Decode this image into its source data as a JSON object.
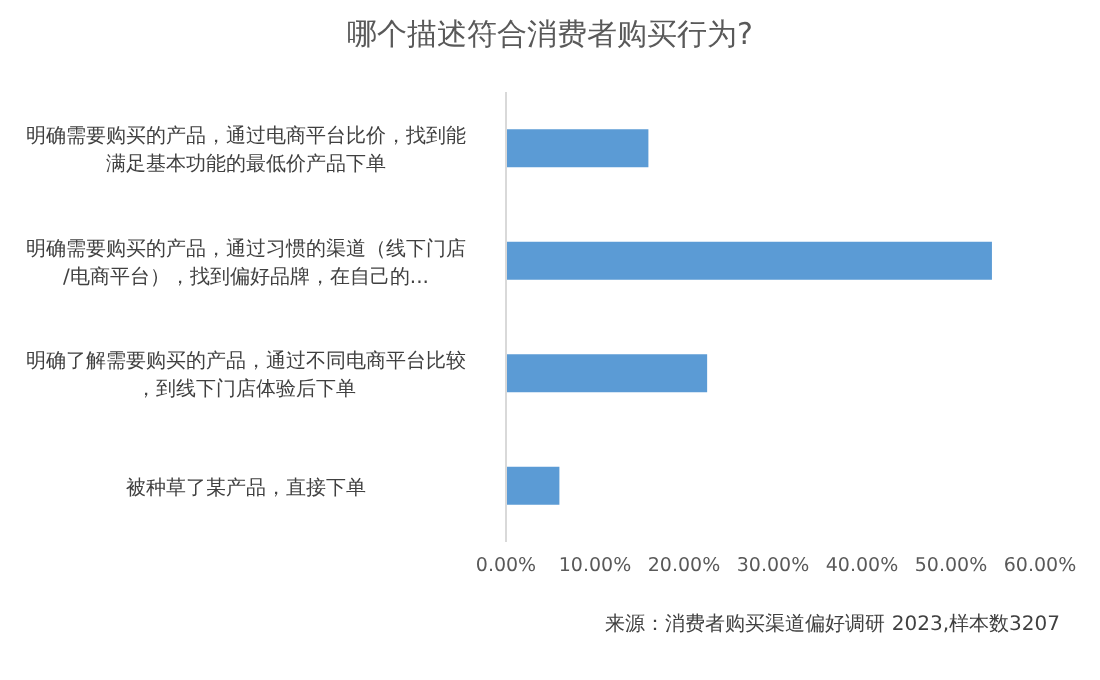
{
  "chart_data": {
    "type": "bar",
    "orientation": "horizontal",
    "title": "哪个描述符合消费者购买行为?",
    "categories": [
      "明确需要购买的产品，通过电商平台比价，找到能满足基本功能的最低价产品下单",
      "明确需要购买的产品，通过习惯的渠道（线下门店/电商平台），找到偏好品牌，在自己的...",
      "明确了解需要购买的产品，通过不同电商平台比较，到线下门店体验后下单",
      "被种草了某产品，直接下单"
    ],
    "values": [
      16,
      54.6,
      22.6,
      6
    ],
    "color": "#5b9bd5",
    "xlim": [
      0,
      60
    ],
    "xticks": [
      {
        "value": 0,
        "label": "0.00%"
      },
      {
        "value": 10,
        "label": "10.00%"
      },
      {
        "value": 20,
        "label": "20.00%"
      },
      {
        "value": 30,
        "label": "30.00%"
      },
      {
        "value": 40,
        "label": "40.00%"
      },
      {
        "value": 50,
        "label": "50.00%"
      },
      {
        "value": 60,
        "label": "60.00%"
      }
    ],
    "grid": false,
    "annotations": [
      "来源：消费者购买渠道偏好调研 2023,样本数3207"
    ]
  }
}
